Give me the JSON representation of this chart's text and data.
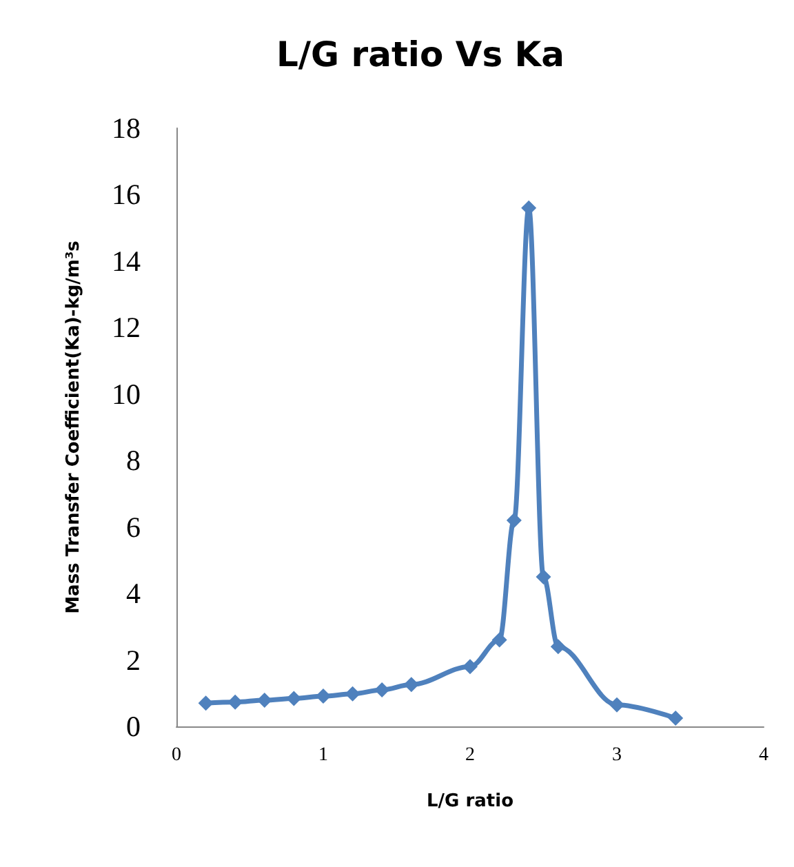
{
  "chart_data": {
    "type": "line",
    "title": "L/G ratio Vs Ka",
    "xlabel": "L/G ratio",
    "ylabel": "Mass Transfer Coefficient(Ka)-kg/m³s",
    "x": [
      0.2,
      0.4,
      0.6,
      0.8,
      1.0,
      1.2,
      1.4,
      1.6,
      2.0,
      2.2,
      2.3,
      2.4,
      2.5,
      2.6,
      3.0,
      3.4
    ],
    "series": [
      {
        "color": "#4f81bd",
        "values": [
          0.7,
          0.73,
          0.79,
          0.84,
          0.91,
          0.98,
          1.1,
          1.26,
          1.8,
          2.6,
          6.2,
          15.6,
          4.5,
          2.4,
          0.65,
          0.25
        ]
      }
    ],
    "xlim": [
      0,
      4
    ],
    "xticks": [
      0,
      1,
      2,
      3,
      4
    ],
    "ylim": [
      0,
      18
    ],
    "yticks": [
      0,
      2,
      4,
      6,
      8,
      10,
      12,
      14,
      16,
      18
    ],
    "grid": false,
    "marker": "diamond",
    "line_style": "solid"
  }
}
